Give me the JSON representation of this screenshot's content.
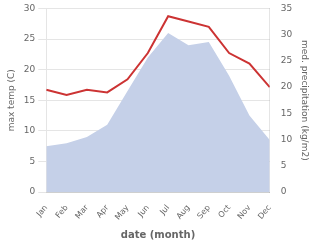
{
  "chart_data": {
    "type": "line",
    "xlabel": "date (month)",
    "ylabel": "max temp (C)",
    "y2label": "med. precipitation (kg/m2)",
    "categories": [
      "Jan",
      "Feb",
      "Mar",
      "Apr",
      "May",
      "Jun",
      "Jul",
      "Aug",
      "Sep",
      "Oct",
      "Nov",
      "Dec"
    ],
    "series": [
      {
        "type": "area",
        "color": "#c5d0e8",
        "values": [
          7.5,
          8.0,
          9.0,
          11.0,
          16.5,
          22.0,
          26.0,
          24.0,
          24.5,
          19.0,
          12.5,
          8.5
        ]
      },
      {
        "type": "line",
        "color": "#cc3333",
        "axis": "y2",
        "values": [
          19.5,
          18.5,
          19.5,
          19.0,
          21.5,
          26.5,
          33.5,
          32.5,
          31.5,
          26.5,
          24.5,
          20.0
        ]
      }
    ],
    "ylim": [
      0,
      30
    ],
    "yticks": [
      0,
      5,
      10,
      15,
      20,
      25,
      30
    ],
    "y2lim": [
      0,
      35
    ],
    "y2ticks": [
      0,
      5,
      10,
      15,
      20,
      25,
      30,
      35
    ],
    "grid": true
  }
}
